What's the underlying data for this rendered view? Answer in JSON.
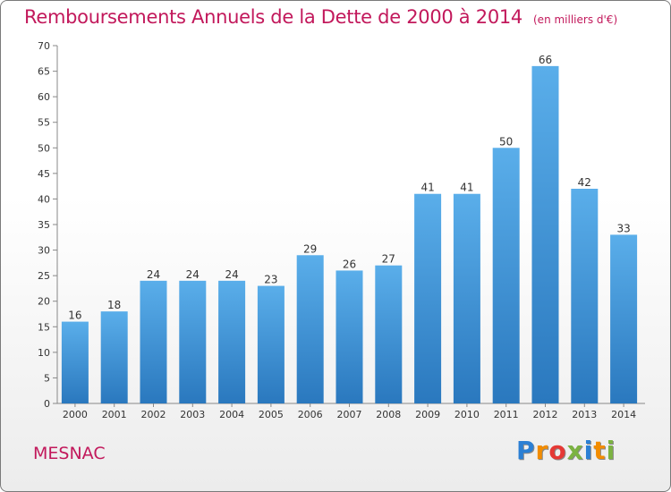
{
  "chart_data": {
    "type": "bar",
    "title": "Remboursements Annuels de la Dette de 2000 à 2014",
    "unit": "(en milliers d'€)",
    "categories": [
      "2000",
      "2001",
      "2002",
      "2003",
      "2004",
      "2005",
      "2006",
      "2007",
      "2008",
      "2009",
      "2010",
      "2011",
      "2012",
      "2013",
      "2014"
    ],
    "values": [
      16,
      18,
      24,
      24,
      24,
      23,
      29,
      26,
      27,
      41,
      41,
      50,
      66,
      42,
      33
    ],
    "ylim": [
      0,
      70
    ],
    "yticks": [
      0,
      5,
      10,
      15,
      20,
      25,
      30,
      35,
      40,
      45,
      50,
      55,
      60,
      65,
      70
    ],
    "grid": false,
    "bar_color": "#4a9fe0"
  },
  "footer": {
    "commune": "MESNAC",
    "logo_letters": [
      "P",
      "r",
      "o",
      "x",
      "i",
      "t",
      "i"
    ],
    "logo_colors": [
      "#2b7fd4",
      "#f28c00",
      "#e53935",
      "#7cb342",
      "#2b7fd4",
      "#f28c00",
      "#7cb342"
    ]
  }
}
